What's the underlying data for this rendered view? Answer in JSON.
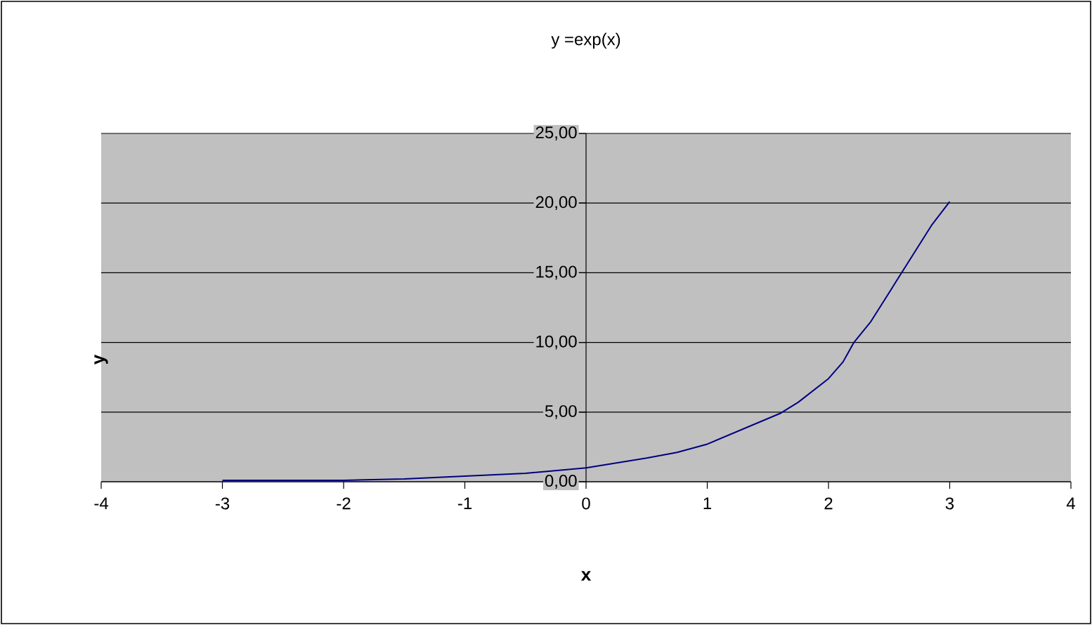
{
  "chart_data": {
    "type": "line",
    "title": "y =exp(x)",
    "xlabel": "x",
    "ylabel": "y",
    "x": [
      -3,
      -2,
      -1.5,
      -0.5,
      0,
      0.5,
      0.75,
      1,
      1.6,
      1.75,
      2,
      2.12,
      2.21,
      2.35,
      2.85,
      3
    ],
    "values": [
      0.1,
      0.1,
      0.2,
      0.6,
      1,
      1.7,
      2.1,
      2.7,
      4.9,
      5.7,
      7.4,
      8.6,
      10,
      11.5,
      18.4,
      20.1
    ],
    "color": "#000080",
    "xlim": [
      -4,
      4
    ],
    "ylim": [
      0,
      25
    ],
    "xticks": [
      -4,
      -3,
      -2,
      -1,
      0,
      1,
      2,
      3,
      4
    ],
    "yticks": [
      {
        "value": 0,
        "label": "0,00"
      },
      {
        "value": 5,
        "label": "5,00"
      },
      {
        "value": 10,
        "label": "10,00"
      },
      {
        "value": 15,
        "label": "15,00"
      },
      {
        "value": 20,
        "label": "20,00"
      },
      {
        "value": 25,
        "label": "25,00"
      }
    ],
    "grid": "y"
  }
}
